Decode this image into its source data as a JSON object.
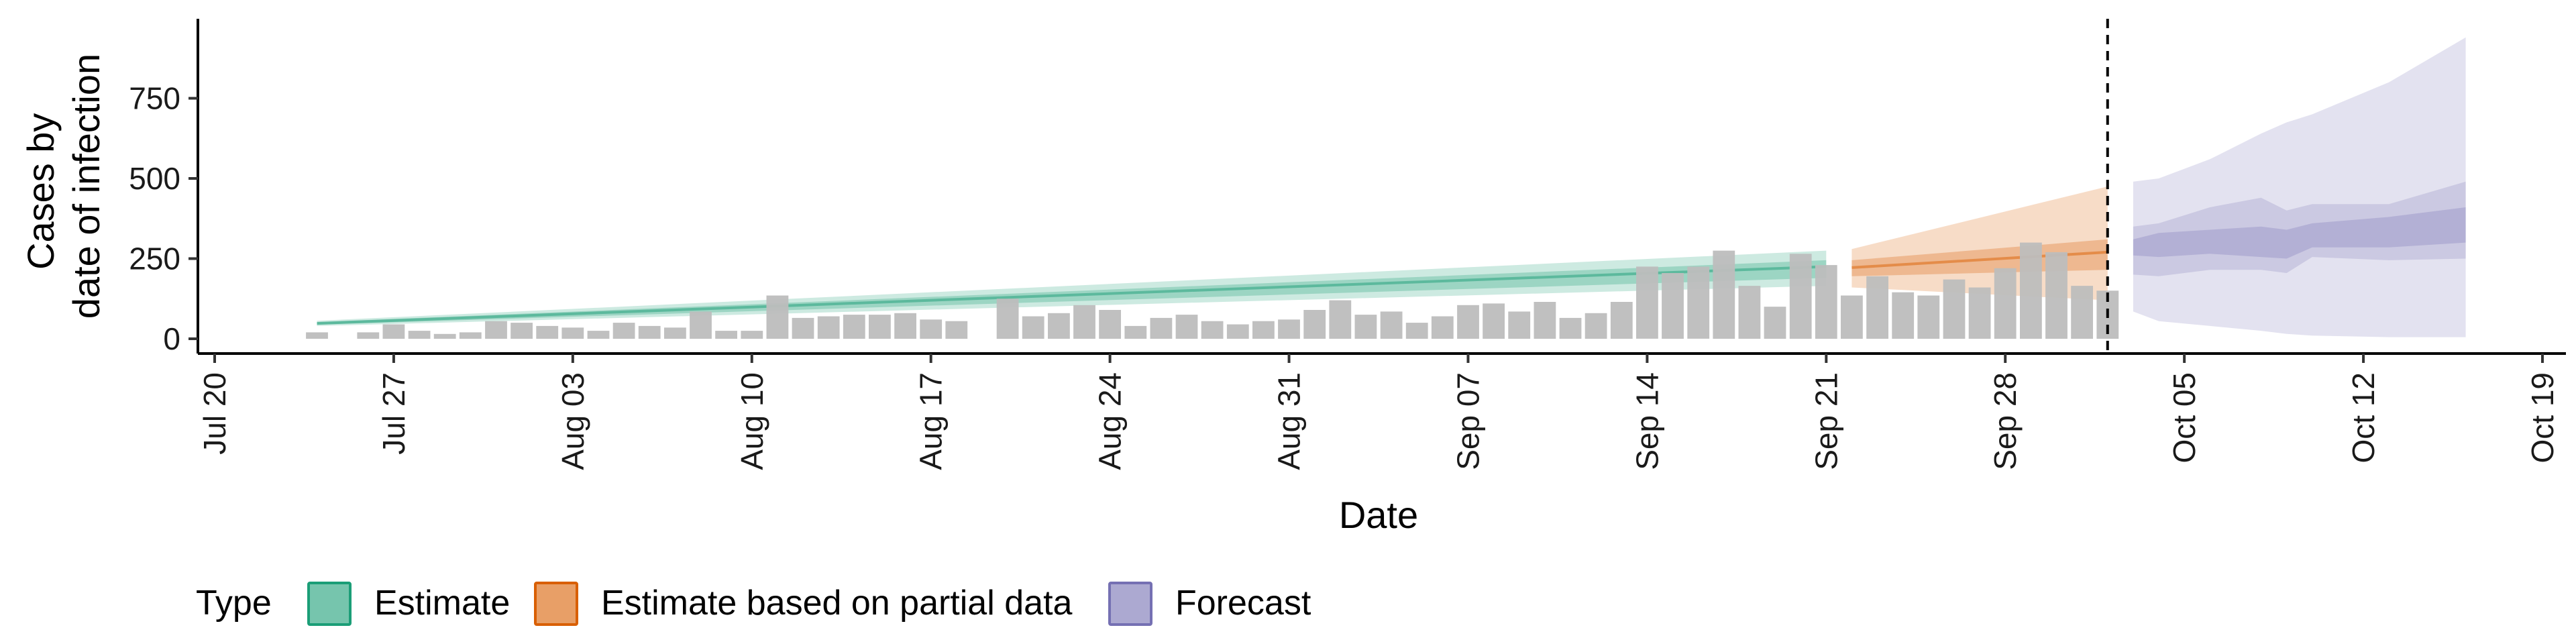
{
  "chart_data": {
    "type": "bar",
    "xlabel": "Date",
    "ylabel_lines": [
      "Cases by",
      "date of infection"
    ],
    "x_range": [
      "2020-07-20",
      "2020-10-19"
    ],
    "ylim": [
      0,
      980
    ],
    "x_ticks": [
      {
        "date": "2020-07-20",
        "label": "Jul 20"
      },
      {
        "date": "2020-07-27",
        "label": "Jul 27"
      },
      {
        "date": "2020-08-03",
        "label": "Aug 03"
      },
      {
        "date": "2020-08-10",
        "label": "Aug 10"
      },
      {
        "date": "2020-08-17",
        "label": "Aug 17"
      },
      {
        "date": "2020-08-24",
        "label": "Aug 24"
      },
      {
        "date": "2020-08-31",
        "label": "Aug 31"
      },
      {
        "date": "2020-09-07",
        "label": "Sep 07"
      },
      {
        "date": "2020-09-14",
        "label": "Sep 14"
      },
      {
        "date": "2020-09-21",
        "label": "Sep 21"
      },
      {
        "date": "2020-09-28",
        "label": "Sep 28"
      },
      {
        "date": "2020-10-05",
        "label": "Oct 05"
      },
      {
        "date": "2020-10-12",
        "label": "Oct 12"
      },
      {
        "date": "2020-10-19",
        "label": "Oct 19"
      }
    ],
    "y_ticks": [
      0,
      250,
      500,
      750
    ],
    "grid": false,
    "legend": {
      "title": "Type",
      "position": "bottom",
      "items": [
        {
          "label": "Estimate",
          "color": "#1b9e77"
        },
        {
          "label": "Estimate based on partial data",
          "color": "#d95f02"
        },
        {
          "label": "Forecast",
          "color": "#7570b3"
        }
      ]
    },
    "bar_color": "#bdbdbd",
    "reference_line_date": "2020-10-02",
    "reported_cases": {
      "start_date": "2020-07-24",
      "values": [
        20,
        0,
        20,
        45,
        25,
        15,
        20,
        55,
        50,
        40,
        35,
        25,
        50,
        40,
        35,
        85,
        25,
        25,
        135,
        65,
        70,
        75,
        75,
        80,
        60,
        55,
        0,
        125,
        70,
        80,
        105,
        90,
        40,
        65,
        75,
        55,
        45,
        55,
        60,
        90,
        120,
        75,
        85,
        50,
        70,
        105,
        110,
        85,
        115,
        65,
        80,
        115,
        225,
        205,
        225,
        275,
        165,
        100,
        265,
        230,
        135,
        195,
        145,
        135,
        185,
        160,
        220,
        300,
        270,
        165,
        150
      ]
    },
    "series": [
      {
        "name": "Estimate",
        "color": "#1b9e77",
        "start_date": "2020-07-24",
        "end_date": "2020-09-21",
        "median": [
          48,
          225
        ],
        "inner_band": {
          "lower": [
            44,
            190
          ],
          "upper": [
            52,
            245
          ]
        },
        "outer_band": {
          "lower": [
            40,
            165
          ],
          "upper": [
            56,
            275
          ]
        }
      },
      {
        "name": "Estimate based on partial data",
        "color": "#d95f02",
        "start_date": "2020-09-22",
        "end_date": "2020-10-02",
        "median": [
          222,
          270
        ],
        "inner_band": {
          "lower": [
            195,
            215
          ],
          "upper": [
            245,
            310
          ]
        },
        "outer_band": {
          "lower": [
            160,
            120
          ],
          "upper": [
            280,
            475
          ]
        }
      },
      {
        "name": "Forecast",
        "color": "#7570b3",
        "dates": [
          "2020-10-03",
          "2020-10-04",
          "2020-10-06",
          "2020-10-08",
          "2020-10-09",
          "2020-10-10",
          "2020-10-13",
          "2020-10-16"
        ],
        "inner_band": {
          "lower": [
            260,
            255,
            265,
            255,
            250,
            285,
            285,
            300
          ],
          "upper": [
            310,
            330,
            340,
            350,
            340,
            360,
            380,
            410
          ]
        },
        "outer_band": {
          "lower": [
            200,
            195,
            215,
            215,
            205,
            255,
            245,
            250
          ],
          "upper": [
            350,
            360,
            410,
            440,
            400,
            420,
            420,
            490
          ]
        },
        "extreme_band": {
          "lower": [
            85,
            55,
            40,
            25,
            15,
            10,
            5,
            5
          ],
          "upper": [
            490,
            500,
            560,
            640,
            675,
            700,
            800,
            940
          ]
        }
      }
    ]
  }
}
